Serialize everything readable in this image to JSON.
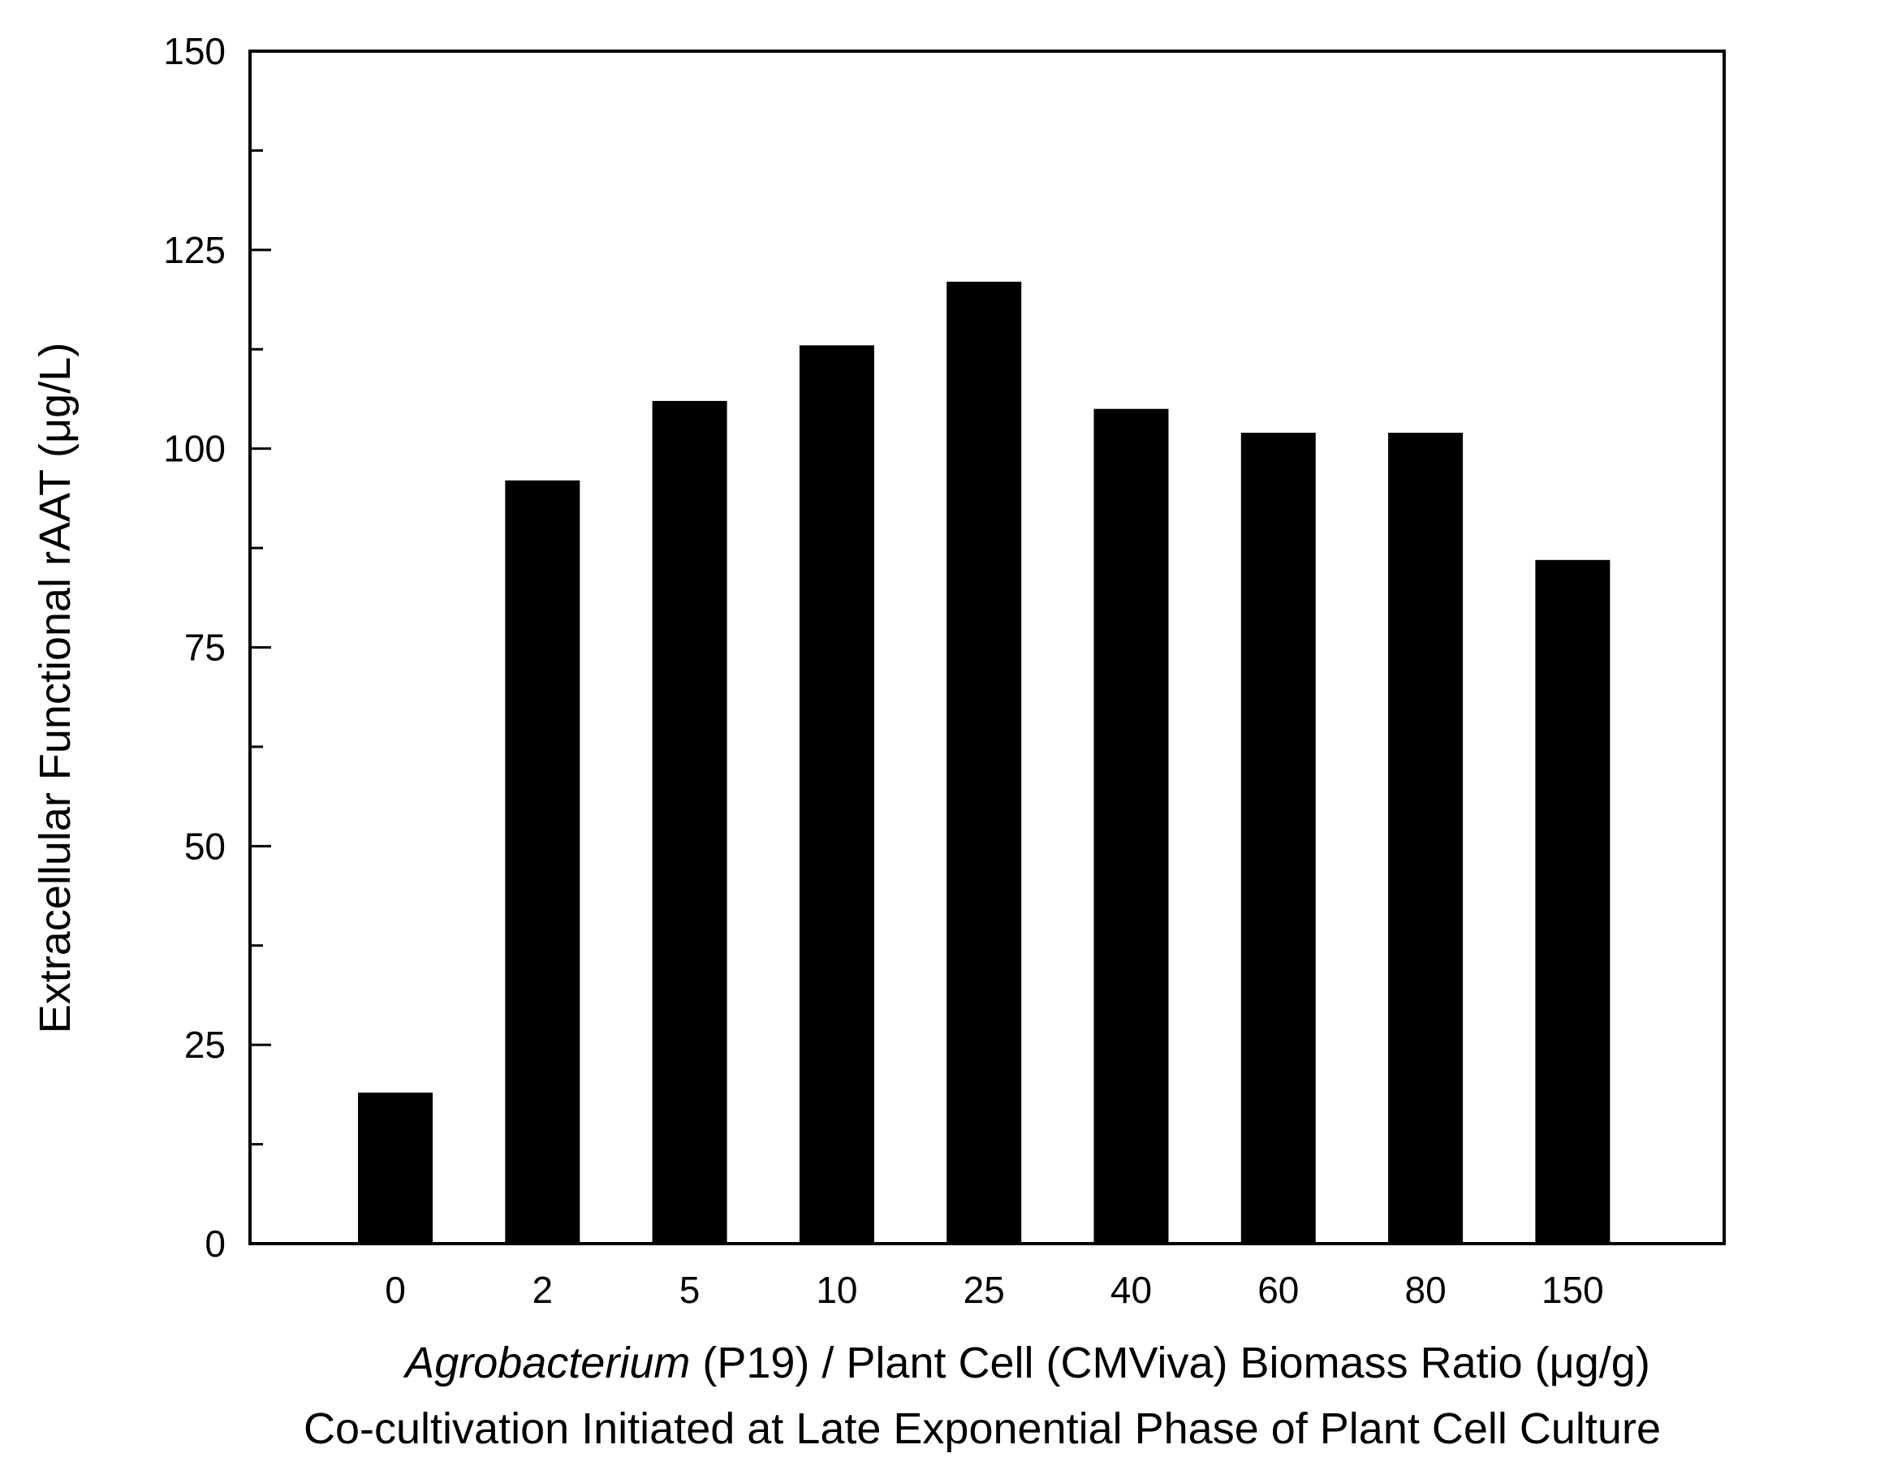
{
  "chart_data": {
    "type": "bar",
    "categories": [
      "0",
      "2",
      "5",
      "10",
      "25",
      "40",
      "60",
      "80",
      "150"
    ],
    "values": [
      19,
      96,
      106,
      113,
      121,
      105,
      102,
      102,
      86
    ],
    "ylabel": "Extracellular Functional rAAT (μg/L)",
    "xlabel_italic": "Agrobacterium",
    "xlabel_rest": " (P19) / Plant Cell (CMViva) Biomass Ratio (μg/g)",
    "xlabel_line2": "Co-cultivation Initiated at Late Exponential Phase of Plant Cell Culture",
    "ylim": [
      0,
      150
    ],
    "yticks": [
      "0",
      "25",
      "50",
      "75",
      "100",
      "125",
      "150"
    ],
    "bar_color": "#000000",
    "grid": false,
    "legend": "none"
  }
}
